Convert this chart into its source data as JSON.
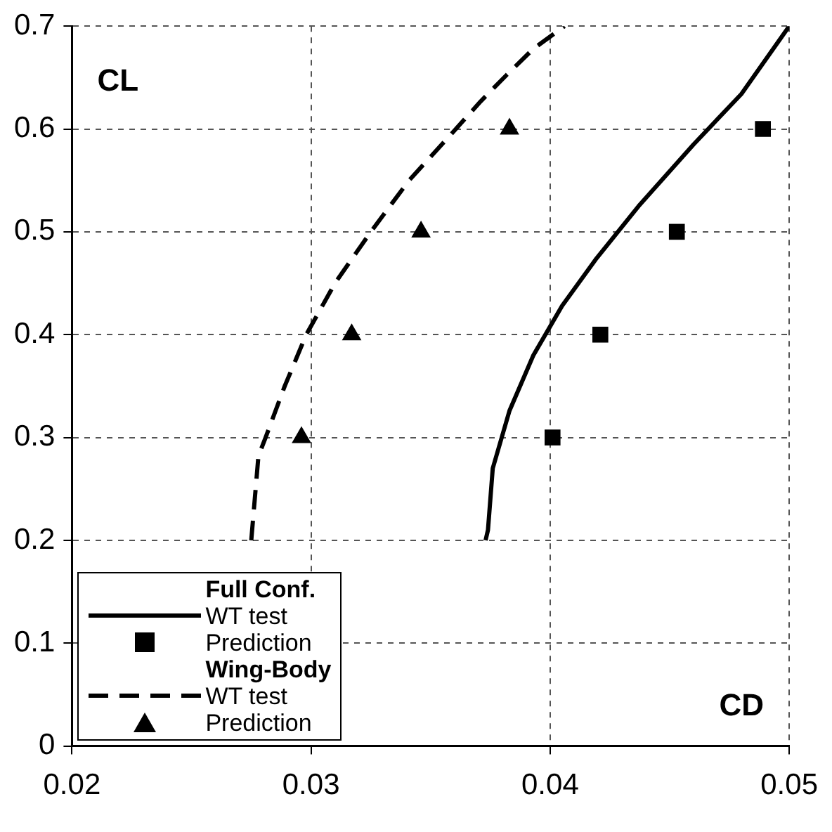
{
  "chart_data": {
    "type": "line",
    "xlim": [
      0.02,
      0.05
    ],
    "xticks": [
      0.02,
      0.03,
      0.04,
      0.05
    ],
    "ylim": [
      0,
      0.7
    ],
    "yticks": [
      0,
      0.1,
      0.2,
      0.3,
      0.4,
      0.5,
      0.6,
      0.7
    ],
    "grid": true,
    "legend": "bottom left",
    "ylabel": "CL",
    "xlabel": "CD",
    "annotations": [
      "Full Conf.",
      "Wing-Body"
    ],
    "series": [
      {
        "name": "WT test",
        "line_style": "solid",
        "marker": "none",
        "color": "#000000",
        "x": [
          0.0373,
          0.0374,
          0.0376,
          0.0383,
          0.0393,
          0.0405,
          0.0419,
          0.0437,
          0.046,
          0.048,
          0.05
        ],
        "values": [
          0.2,
          0.21,
          0.27,
          0.326,
          0.38,
          0.428,
          0.473,
          0.525,
          0.585,
          0.634,
          0.7
        ]
      },
      {
        "name": "Prediction",
        "type": "scatter",
        "marker": "square",
        "color": "#000000",
        "x": [
          0.0401,
          0.0421,
          0.0453,
          0.0489
        ],
        "values": [
          0.3,
          0.4,
          0.5,
          0.6
        ]
      },
      {
        "name": "WT test",
        "line_style": "dashed",
        "marker": "none",
        "color": "#000000",
        "x": [
          0.0275,
          0.0278,
          0.0281,
          0.0289,
          0.0298,
          0.031,
          0.0325,
          0.0341,
          0.0359,
          0.0371,
          0.0382,
          0.0393,
          0.0406
        ],
        "values": [
          0.2,
          0.282,
          0.3,
          0.35,
          0.4,
          0.45,
          0.5,
          0.55,
          0.596,
          0.627,
          0.653,
          0.678,
          0.7
        ]
      },
      {
        "name": "Prediction",
        "type": "scatter",
        "marker": "triangle",
        "color": "#000000",
        "x": [
          0.0296,
          0.0317,
          0.0346,
          0.0383
        ],
        "values": [
          0.3,
          0.4,
          0.5,
          0.6
        ]
      }
    ]
  }
}
